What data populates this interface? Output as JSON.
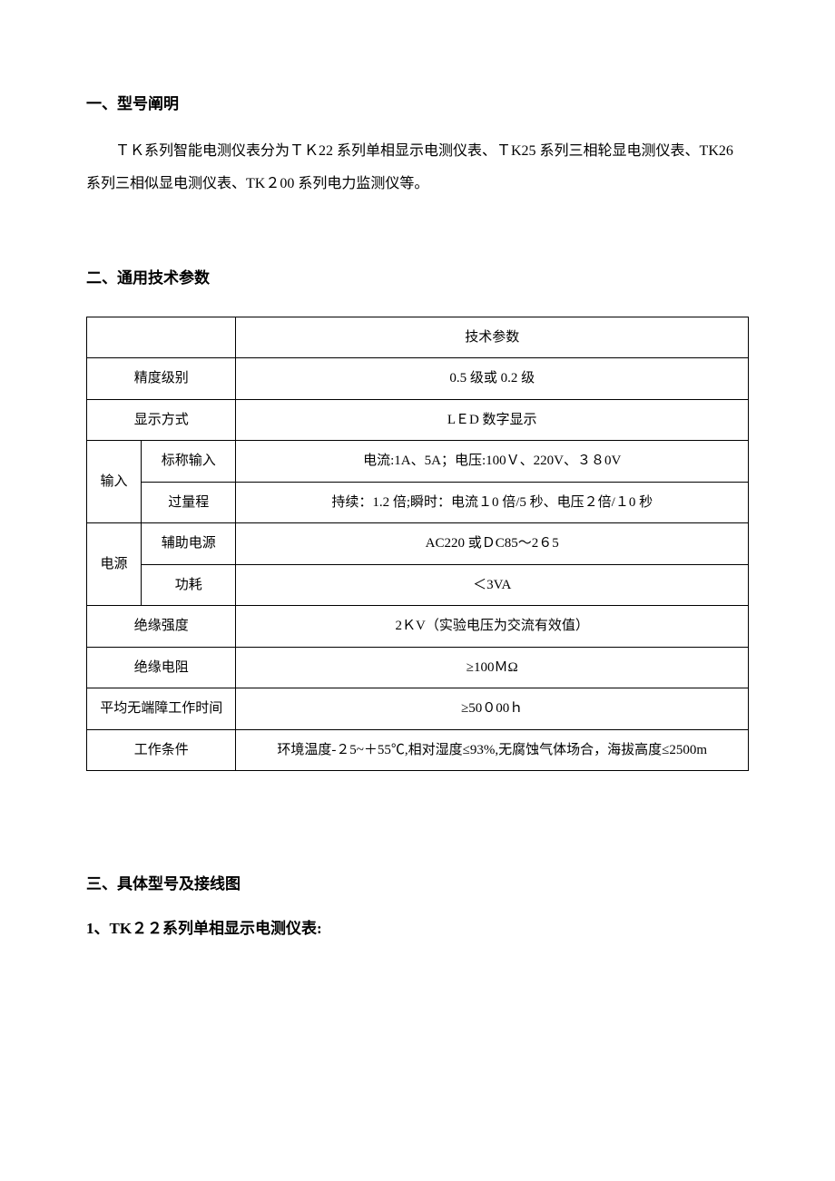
{
  "section1": {
    "heading": "一、型号阐明",
    "paragraph": "ＴＫ系列智能电测仪表分为ＴＫ22 系列单相显示电测仪表、ＴK25 系列三相轮显电测仪表、TK26 系列三相似显电测仪表、TK２00 系列电力监测仪等。"
  },
  "section2": {
    "heading": "二、通用技术参数",
    "table": {
      "header_right": "技术参数",
      "rows": [
        {
          "label": "精度级别",
          "value": "0.5 级或 0.2 级"
        },
        {
          "label": "显示方式",
          "value": "LＥD 数字显示"
        }
      ],
      "group_input": {
        "group_label": "输入",
        "items": [
          {
            "label": "标称输入",
            "value": "电流:1A、5A；电压:100Ｖ、220V、３８0V"
          },
          {
            "label": "过量程",
            "value": "持续：1.2 倍;瞬时：电流１0 倍/5 秒、电压２倍/１0 秒"
          }
        ]
      },
      "group_power": {
        "group_label": "电源",
        "items": [
          {
            "label": "辅助电源",
            "value": "AC220 或ＤC85～2６5"
          },
          {
            "label": "功耗",
            "value": "＜3VA"
          }
        ]
      },
      "rows2": [
        {
          "label": "绝缘强度",
          "value": "2ＫV（实验电压为交流有效值）"
        },
        {
          "label": "绝缘电阻",
          "value": "≥100ＭΩ"
        },
        {
          "label": "平均无端障工作时间",
          "value": "≥50０00ｈ"
        },
        {
          "label": "工作条件",
          "value": "环境温度-２5~＋55℃,相对湿度≤93%,无腐蚀气体场合，海拔高度≤2500m"
        }
      ]
    }
  },
  "section3": {
    "heading": "三、具体型号及接线图",
    "item1": "1、TK２２系列单相显示电测仪表:"
  }
}
